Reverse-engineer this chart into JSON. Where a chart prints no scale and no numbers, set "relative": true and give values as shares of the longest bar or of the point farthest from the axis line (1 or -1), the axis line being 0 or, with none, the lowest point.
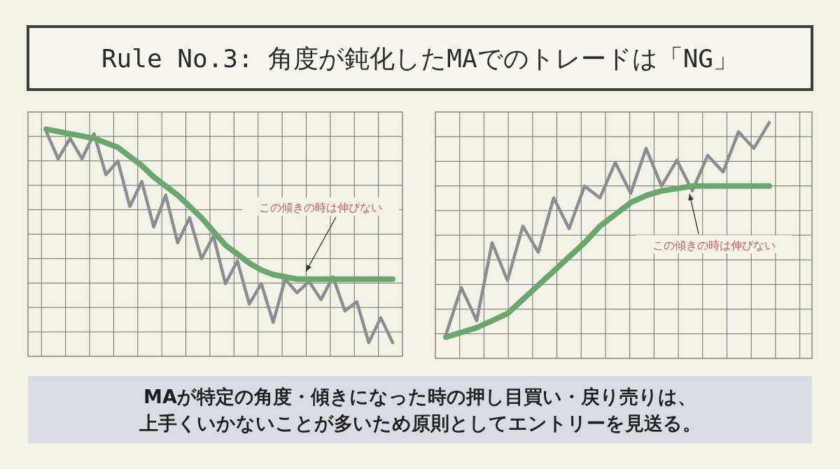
{
  "chart_data": [
    {
      "type": "line",
      "title": "Rule No.3: 角度が鈍化したMAでのトレードは「NG」",
      "relative": true,
      "grid": true,
      "categories": [
        null,
        null,
        null,
        null,
        null,
        null,
        null,
        null,
        null,
        null,
        null,
        null,
        null,
        null,
        null,
        null,
        null,
        null,
        null,
        null,
        null,
        null,
        null,
        null,
        null,
        null,
        null,
        null,
        null,
        null
      ],
      "series": [
        {
          "color": "#8a8d93",
          "values": [
            0.99,
            0.87,
            0.96,
            0.87,
            0.98,
            0.8,
            0.86,
            0.66,
            0.77,
            0.57,
            0.71,
            0.5,
            0.61,
            0.43,
            0.53,
            0.32,
            0.42,
            0.23,
            0.32,
            0.15,
            0.34,
            0.28,
            0.33,
            0.25,
            0.35,
            0.2,
            0.24,
            0.06,
            0.17,
            0.06
          ]
        },
        {
          "color": "#6aa66e",
          "values": [
            1.0,
            0.99,
            0.98,
            0.97,
            0.96,
            0.94,
            0.92,
            0.88,
            0.84,
            0.79,
            0.75,
            0.71,
            0.66,
            0.61,
            0.55,
            0.49,
            0.45,
            0.41,
            0.38,
            0.36,
            0.35,
            0.34,
            0.34,
            0.34,
            0.34,
            0.34,
            0.34,
            0.34,
            0.34,
            0.34
          ]
        }
      ],
      "annotations": [
        "この傾きの時は伸びない"
      ]
    },
    {
      "type": "line",
      "relative": true,
      "grid": true,
      "categories": [
        null,
        null,
        null,
        null,
        null,
        null,
        null,
        null,
        null,
        null,
        null,
        null,
        null,
        null,
        null,
        null,
        null,
        null,
        null,
        null,
        null,
        null
      ],
      "series": [
        {
          "color": "#8a8d93",
          "values": [
            0.1,
            0.3,
            0.16,
            0.49,
            0.33,
            0.56,
            0.45,
            0.68,
            0.55,
            0.73,
            0.68,
            0.83,
            0.7,
            0.89,
            0.73,
            0.84,
            0.71,
            0.86,
            0.79,
            0.96,
            0.89,
            1.0
          ]
        },
        {
          "color": "#6aa66e",
          "values": [
            0.09,
            0.11,
            0.13,
            0.16,
            0.19,
            0.25,
            0.31,
            0.37,
            0.43,
            0.49,
            0.56,
            0.61,
            0.66,
            0.69,
            0.71,
            0.72,
            0.73,
            0.73,
            0.73,
            0.73,
            0.73,
            0.73
          ]
        }
      ],
      "annotations": [
        "この傾きの時は伸びない",
        "MAが特定の角度・傾きになった時の押し目買い・戻り売りは、上手くいかないことが多いため原則としてエントリーを見送る。"
      ]
    }
  ]
}
